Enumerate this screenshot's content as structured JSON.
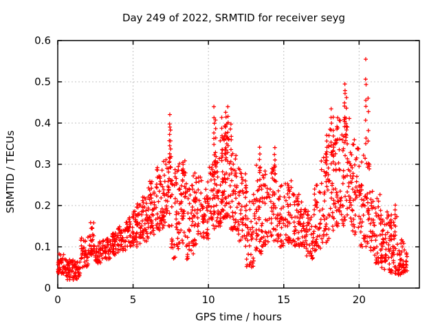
{
  "chart_data": {
    "type": "scatter",
    "title": "Day 249 of 2022, SRMTID for receiver seyg",
    "xlabel": "GPS time / hours",
    "ylabel": "SRMTID / TECUs",
    "xlim": [
      0,
      24
    ],
    "ylim": [
      0,
      0.6
    ],
    "xticks": [
      0,
      5,
      10,
      15,
      20
    ],
    "xtick_labels": [
      "0",
      "5",
      "10",
      "15",
      "20"
    ],
    "yticks": [
      0,
      0.1,
      0.2,
      0.3,
      0.4,
      0.5,
      0.6
    ],
    "ytick_labels": [
      "0",
      "0.1",
      "0.2",
      "0.3",
      "0.4",
      "0.5",
      "0.6"
    ],
    "grid": true,
    "grid_style": "dashed",
    "legend_visible": false,
    "marker": "plus",
    "colors": {
      "marker": "#ff0000",
      "grid": "#bfbfbf",
      "frame": "#000000",
      "background": "#ffffff",
      "text": "#000000"
    },
    "series": [
      {
        "name": "SRMTID",
        "representation": "density_bins",
        "bins_format": [
          "x_start_hours",
          "x_end_hours",
          "y_min_tecus",
          "y_max_tecus",
          "n_points"
        ],
        "bins": [
          [
            0.0,
            0.5,
            0.035,
            0.085,
            40
          ],
          [
            0.5,
            1.0,
            0.02,
            0.07,
            40
          ],
          [
            1.0,
            1.5,
            0.02,
            0.065,
            35
          ],
          [
            1.5,
            2.0,
            0.05,
            0.125,
            35
          ],
          [
            2.0,
            2.4,
            0.08,
            0.16,
            28
          ],
          [
            2.4,
            3.0,
            0.06,
            0.115,
            40
          ],
          [
            3.0,
            3.5,
            0.07,
            0.12,
            35
          ],
          [
            3.5,
            4.0,
            0.08,
            0.135,
            35
          ],
          [
            4.0,
            4.5,
            0.09,
            0.155,
            35
          ],
          [
            4.5,
            5.0,
            0.1,
            0.175,
            35
          ],
          [
            5.0,
            5.5,
            0.1,
            0.21,
            40
          ],
          [
            5.5,
            6.0,
            0.11,
            0.23,
            40
          ],
          [
            6.0,
            6.5,
            0.13,
            0.26,
            42
          ],
          [
            6.5,
            7.0,
            0.14,
            0.3,
            45
          ],
          [
            7.0,
            7.5,
            0.15,
            0.33,
            45
          ],
          [
            7.5,
            8.0,
            0.07,
            0.3,
            40
          ],
          [
            8.0,
            8.5,
            0.1,
            0.31,
            45
          ],
          [
            8.5,
            9.0,
            0.07,
            0.26,
            40
          ],
          [
            9.0,
            9.5,
            0.1,
            0.28,
            40
          ],
          [
            9.5,
            10.0,
            0.12,
            0.27,
            40
          ],
          [
            10.0,
            10.5,
            0.14,
            0.3,
            40
          ],
          [
            10.5,
            11.0,
            0.15,
            0.36,
            50
          ],
          [
            11.0,
            11.5,
            0.17,
            0.4,
            50
          ],
          [
            11.5,
            12.0,
            0.14,
            0.33,
            46
          ],
          [
            12.0,
            12.5,
            0.1,
            0.29,
            40
          ],
          [
            12.5,
            13.0,
            0.05,
            0.26,
            40
          ],
          [
            13.0,
            13.5,
            0.08,
            0.3,
            40
          ],
          [
            13.5,
            14.0,
            0.1,
            0.3,
            38
          ],
          [
            14.0,
            14.5,
            0.1,
            0.3,
            38
          ],
          [
            14.5,
            15.0,
            0.1,
            0.26,
            36
          ],
          [
            15.0,
            15.5,
            0.11,
            0.27,
            36
          ],
          [
            15.5,
            16.0,
            0.1,
            0.23,
            36
          ],
          [
            16.0,
            16.5,
            0.1,
            0.21,
            36
          ],
          [
            16.5,
            17.0,
            0.07,
            0.19,
            36
          ],
          [
            17.0,
            17.5,
            0.09,
            0.25,
            38
          ],
          [
            17.5,
            18.0,
            0.11,
            0.33,
            40
          ],
          [
            18.0,
            18.5,
            0.14,
            0.4,
            45
          ],
          [
            18.5,
            19.0,
            0.15,
            0.42,
            46
          ],
          [
            19.0,
            19.5,
            0.16,
            0.44,
            40
          ],
          [
            19.5,
            20.0,
            0.13,
            0.36,
            38
          ],
          [
            20.0,
            20.5,
            0.1,
            0.33,
            40
          ],
          [
            20.5,
            21.0,
            0.09,
            0.3,
            42
          ],
          [
            21.0,
            21.5,
            0.06,
            0.24,
            40
          ],
          [
            21.5,
            22.0,
            0.04,
            0.19,
            42
          ],
          [
            22.0,
            22.5,
            0.035,
            0.18,
            45
          ],
          [
            22.5,
            23.0,
            0.03,
            0.12,
            40
          ],
          [
            23.0,
            23.2,
            0.04,
            0.1,
            15
          ]
        ],
        "spikes_format": [
          "x_hours",
          "y_min_tecus",
          "y_max_tecus",
          "n_points"
        ],
        "spikes": [
          [
            7.42,
            0.3,
            0.43,
            8
          ],
          [
            7.5,
            0.25,
            0.4,
            6
          ],
          [
            8.3,
            0.26,
            0.315,
            5
          ],
          [
            10.38,
            0.3,
            0.45,
            8
          ],
          [
            10.48,
            0.28,
            0.42,
            6
          ],
          [
            10.9,
            0.3,
            0.42,
            7
          ],
          [
            11.15,
            0.3,
            0.44,
            8
          ],
          [
            11.3,
            0.32,
            0.445,
            7
          ],
          [
            11.5,
            0.28,
            0.41,
            6
          ],
          [
            13.4,
            0.26,
            0.345,
            6
          ],
          [
            14.4,
            0.25,
            0.35,
            6
          ],
          [
            17.85,
            0.28,
            0.385,
            7
          ],
          [
            18.15,
            0.3,
            0.44,
            8
          ],
          [
            18.3,
            0.28,
            0.42,
            6
          ],
          [
            19.05,
            0.38,
            0.51,
            8
          ],
          [
            19.15,
            0.35,
            0.47,
            6
          ],
          [
            20.45,
            0.33,
            0.565,
            8
          ],
          [
            20.6,
            0.3,
            0.5,
            5
          ],
          [
            22.4,
            0.13,
            0.215,
            6
          ]
        ]
      }
    ]
  }
}
